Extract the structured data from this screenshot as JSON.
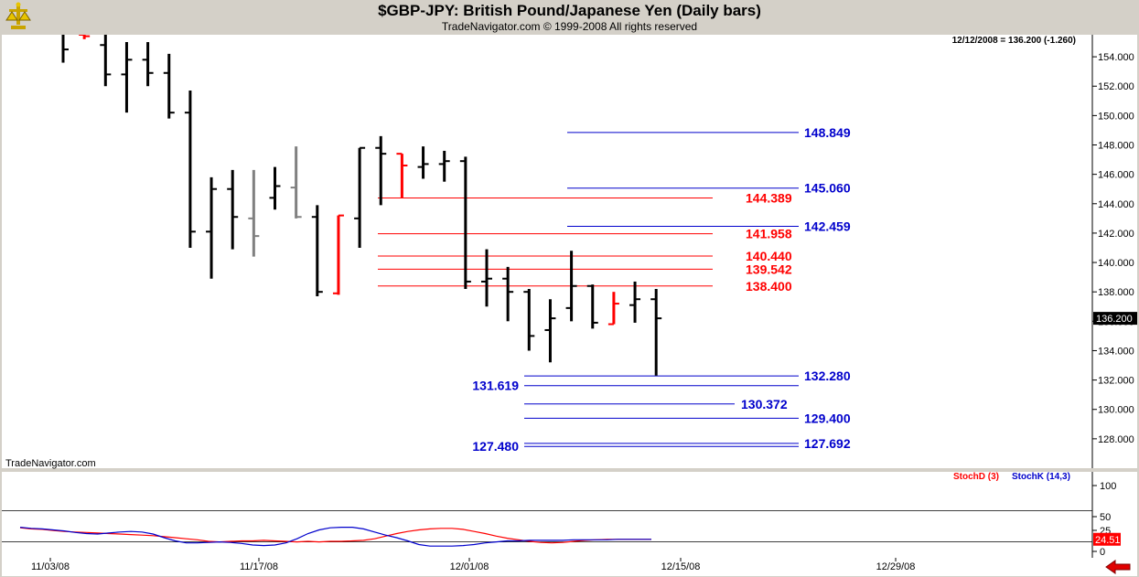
{
  "header": {
    "title": "$GBP-JPY:  British Pound/Japanese Yen  (Daily bars)",
    "subtitle": "TradeNavigator.com © 1999-2008 All rights reserved"
  },
  "info": {
    "last_bar": "12/12/2008 = 136.200 (-1.260)",
    "current_price": "136.200",
    "watermark": "TradeNavigator.com"
  },
  "chart_data": [
    {
      "type": "bar",
      "subtype": "ohlc",
      "title": "$GBP-JPY:  British Pound/Japanese Yen  (Daily bars)",
      "ylim": [
        126.0,
        155.5
      ],
      "y_ticks": [
        "154.000",
        "152.000",
        "150.000",
        "148.000",
        "146.000",
        "144.000",
        "142.000",
        "140.000",
        "138.000",
        "136.000",
        "134.000",
        "132.000",
        "130.000",
        "128.000"
      ],
      "y_tick_values": [
        154,
        152,
        150,
        148,
        146,
        144,
        142,
        140,
        138,
        136,
        134,
        132,
        130,
        128
      ],
      "x_ticks": [
        "11/03/08",
        "11/17/08",
        "12/01/08",
        "12/15/08",
        "12/29/08"
      ],
      "colors": {
        "up": "#000000",
        "down_highlight": "#ff0000",
        "neutral": "#808080",
        "fib_red": "#ff0000",
        "fib_blue": "#0000cc"
      },
      "bars": [
        {
          "date": "10/31/08",
          "o": 156.2,
          "h": 157.0,
          "l": 153.6,
          "c": 154.5,
          "color": "black"
        },
        {
          "date": "11/03/08",
          "o": 155.5,
          "h": 155.9,
          "l": 155.2,
          "c": 155.4,
          "color": "red"
        },
        {
          "date": "11/04/08",
          "o": 154.8,
          "h": 155.8,
          "l": 152.0,
          "c": 152.8,
          "color": "black"
        },
        {
          "date": "11/05/08",
          "o": 152.8,
          "h": 155.0,
          "l": 150.2,
          "c": 153.8,
          "color": "black"
        },
        {
          "date": "11/06/08",
          "o": 153.8,
          "h": 155.0,
          "l": 152.0,
          "c": 152.9,
          "color": "black"
        },
        {
          "date": "11/07/08",
          "o": 152.9,
          "h": 154.2,
          "l": 149.8,
          "c": 150.2,
          "color": "black"
        },
        {
          "date": "11/10/08",
          "o": 150.2,
          "h": 151.7,
          "l": 141.0,
          "c": 142.1,
          "color": "black"
        },
        {
          "date": "11/11/08",
          "o": 142.1,
          "h": 145.8,
          "l": 138.9,
          "c": 145.0,
          "color": "black"
        },
        {
          "date": "11/12/08",
          "o": 145.0,
          "h": 146.3,
          "l": 140.9,
          "c": 143.1,
          "color": "black"
        },
        {
          "date": "11/13/08",
          "o": 143.0,
          "h": 146.3,
          "l": 140.4,
          "c": 141.8,
          "color": "gray"
        },
        {
          "date": "11/14/08",
          "o": 144.4,
          "h": 146.5,
          "l": 143.6,
          "c": 145.2,
          "color": "black"
        },
        {
          "date": "11/17/08",
          "o": 145.1,
          "h": 147.9,
          "l": 143.0,
          "c": 143.1,
          "color": "gray"
        },
        {
          "date": "11/18/08",
          "o": 143.1,
          "h": 143.9,
          "l": 137.7,
          "c": 138.0,
          "color": "black"
        },
        {
          "date": "11/19/08",
          "o": 137.9,
          "h": 143.2,
          "l": 137.8,
          "c": 143.2,
          "color": "red"
        },
        {
          "date": "11/20/08",
          "o": 143.0,
          "h": 147.8,
          "l": 141.0,
          "c": 147.8,
          "color": "black"
        },
        {
          "date": "11/21/08",
          "o": 147.8,
          "h": 148.6,
          "l": 143.9,
          "c": 147.4,
          "color": "black"
        },
        {
          "date": "11/24/08",
          "o": 147.4,
          "h": 147.4,
          "l": 144.4,
          "c": 146.6,
          "color": "red"
        },
        {
          "date": "11/25/08",
          "o": 146.5,
          "h": 147.9,
          "l": 145.7,
          "c": 146.7,
          "color": "black"
        },
        {
          "date": "11/26/08",
          "o": 146.7,
          "h": 147.6,
          "l": 145.5,
          "c": 146.9,
          "color": "black"
        },
        {
          "date": "11/27/08",
          "o": 146.9,
          "h": 147.2,
          "l": 138.2,
          "c": 138.7,
          "color": "black"
        },
        {
          "date": "11/28/08",
          "o": 138.7,
          "h": 140.9,
          "l": 137.0,
          "c": 138.9,
          "color": "black"
        },
        {
          "date": "12/01/08",
          "o": 138.9,
          "h": 139.7,
          "l": 136.0,
          "c": 138.0,
          "color": "black"
        },
        {
          "date": "12/02/08",
          "o": 138.0,
          "h": 138.2,
          "l": 134.0,
          "c": 135.0,
          "color": "black"
        },
        {
          "date": "12/03/08",
          "o": 135.4,
          "h": 137.5,
          "l": 133.2,
          "c": 136.2,
          "color": "black"
        },
        {
          "date": "12/04/08",
          "o": 136.9,
          "h": 140.8,
          "l": 136.0,
          "c": 138.4,
          "color": "black"
        },
        {
          "date": "12/05/08",
          "o": 138.4,
          "h": 138.5,
          "l": 135.5,
          "c": 135.9,
          "color": "black"
        },
        {
          "date": "12/08/08",
          "o": 135.8,
          "h": 138.0,
          "l": 135.8,
          "c": 137.2,
          "color": "red"
        },
        {
          "date": "12/09/08",
          "o": 137.1,
          "h": 138.7,
          "l": 135.9,
          "c": 137.5,
          "color": "black"
        },
        {
          "date": "12/10/08",
          "o": 137.5,
          "h": 138.2,
          "l": 132.3,
          "c": 136.2,
          "color": "black"
        }
      ],
      "fib_levels_red": [
        {
          "label": "144.389",
          "value": 144.389
        },
        {
          "label": "141.958",
          "value": 141.958
        },
        {
          "label": "140.440",
          "value": 140.44
        },
        {
          "label": "139.542",
          "value": 139.542
        },
        {
          "label": "138.400",
          "value": 138.4
        }
      ],
      "fib_levels_blue": [
        {
          "label": "148.849",
          "value": 148.849
        },
        {
          "label": "145.060",
          "value": 145.06
        },
        {
          "label": "142.459",
          "value": 142.459
        },
        {
          "label": "132.280",
          "value": 132.28
        },
        {
          "label": "131.619",
          "value": 131.619
        },
        {
          "label": "130.372",
          "value": 130.372
        },
        {
          "label": "129.400",
          "value": 129.4
        },
        {
          "label": "127.692",
          "value": 127.692
        },
        {
          "label": "127.480",
          "value": 127.48
        }
      ]
    },
    {
      "type": "line",
      "title": "",
      "legend": [
        "StochD (3)",
        "StochK (14,3)"
      ],
      "ylim": [
        0,
        100
      ],
      "y_ticks": [
        "100",
        "50",
        "25",
        "0"
      ],
      "y_tick_values": [
        100,
        50,
        25,
        0
      ],
      "reference_lines": [
        80,
        20
      ],
      "last_value": "24.51",
      "series": [
        {
          "name": "StochD (3)",
          "color": "#ff0000",
          "values": [
            47,
            45,
            44,
            42,
            40,
            39,
            38,
            37,
            36,
            35,
            34,
            33,
            32,
            30,
            28,
            26,
            24,
            21,
            20,
            21,
            22,
            22,
            23,
            22,
            21,
            20,
            21,
            20,
            21,
            21,
            22,
            23,
            26,
            31,
            36,
            40,
            43,
            45,
            46,
            46,
            44,
            40,
            36,
            31,
            27,
            24,
            21,
            19,
            18,
            19,
            21,
            23,
            24,
            25,
            25,
            25,
            25,
            25
          ]
        },
        {
          "name": "StochK (14,3)",
          "color": "#0000cc",
          "values": [
            48,
            46,
            45,
            43,
            41,
            38,
            36,
            35,
            37,
            39,
            40,
            39,
            35,
            28,
            22,
            18,
            18,
            19,
            20,
            19,
            17,
            14,
            13,
            14,
            18,
            26,
            36,
            43,
            47,
            48,
            48,
            45,
            39,
            33,
            28,
            22,
            15,
            12,
            12,
            12,
            13,
            15,
            18,
            20,
            22,
            22,
            23,
            23,
            23,
            23,
            24,
            24,
            24,
            24,
            25,
            25,
            25,
            25
          ]
        }
      ]
    }
  ]
}
